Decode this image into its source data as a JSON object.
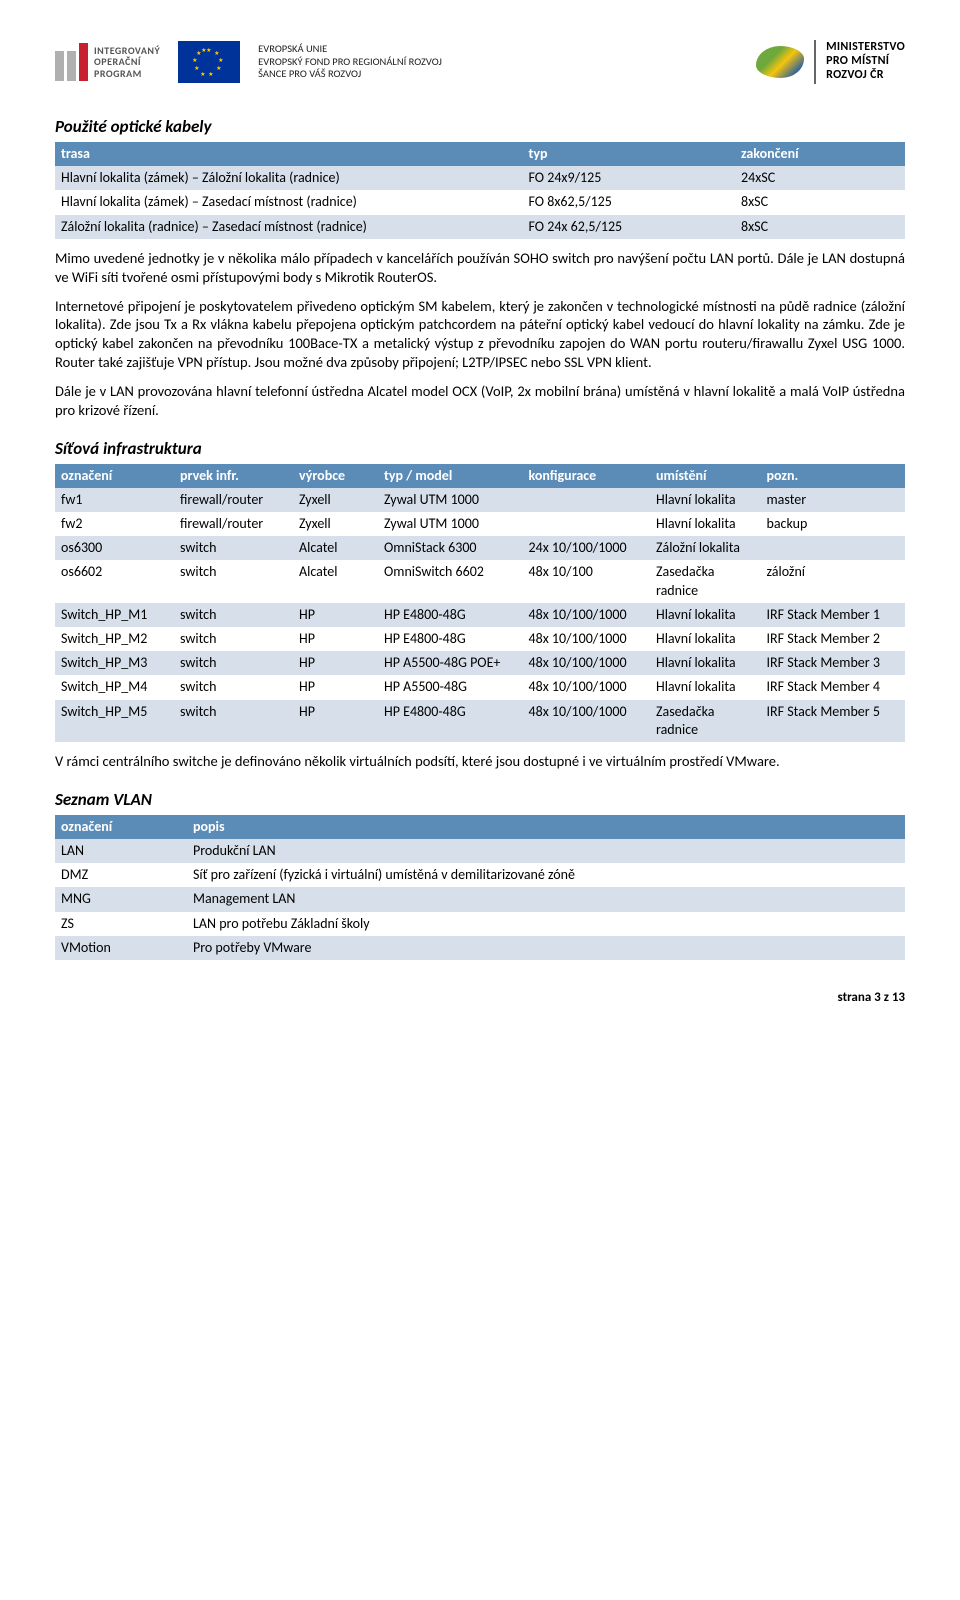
{
  "header": {
    "iop_text": "INTEGROVANÝ\nOPERAČNÍ\nPROGRAM",
    "eu_text": "EVROPSKÁ UNIE\nEVROPSKÝ FOND PRO REGIONÁLNÍ ROZVOJ\nŠANCE PRO VÁŠ ROZVOJ",
    "mmr_text": "MINISTERSTVO\nPRO MÍSTNÍ\nROZVOJ ČR"
  },
  "sec1_title": "Použité optické kabely",
  "table1": {
    "headers": [
      "trasa",
      "typ",
      "zakončení"
    ],
    "rows": [
      [
        "Hlavní lokalita (zámek) – Záložní lokalita (radnice)",
        "FO 24x9/125",
        "24xSC"
      ],
      [
        "Hlavní lokalita (zámek) – Zasedací místnost (radnice)",
        "FO 8x62,5/125",
        "8xSC"
      ],
      [
        "Záložní lokalita (radnice) – Zasedací místnost (radnice)",
        "FO 24x 62,5/125",
        "8xSC"
      ]
    ]
  },
  "para1": "Mimo uvedené jednotky je v několika málo případech v kancelářích používán SOHO switch pro navýšení počtu LAN portů. Dále je LAN dostupná ve WiFi síti tvořené osmi přístupovými body s Mikrotik RouterOS.",
  "para2": "Internetové připojení je poskytovatelem přivedeno optickým SM kabelem, který je zakončen v technologické místnosti na půdě radnice (záložní lokalita). Zde jsou Tx a Rx vlákna kabelu přepojena optickým patchcordem na páteřní optický kabel vedoucí do hlavní lokality na zámku. Zde je optický kabel zakončen na převodníku 100Bace-TX a metalický výstup z převodníku zapojen do WAN portu routeru/firawallu Zyxel USG 1000. Router také zajišťuje VPN přístup. Jsou možné dva způsoby připojení; L2TP/IPSEC nebo SSL VPN klient.",
  "para3": "Dále je v LAN provozována hlavní telefonní ústředna Alcatel model OCX (VoIP, 2x mobilní brána)  umístěná v hlavní lokalitě a malá VoIP ústředna pro krizové řízení.",
  "sec2_title": "Síťová infrastruktura",
  "table2": {
    "headers": [
      "označení",
      "prvek infr.",
      "výrobce",
      "typ / model",
      "konfigurace",
      "umístění",
      "pozn."
    ],
    "rows": [
      [
        "fw1",
        "firewall/router",
        "Zyxell",
        "Zywal UTM 1000",
        "",
        "Hlavní lokalita",
        "master"
      ],
      [
        "fw2",
        "firewall/router",
        "Zyxell",
        "Zywal UTM 1000",
        "",
        "Hlavní lokalita",
        "backup"
      ],
      [
        "os6300",
        "switch",
        "Alcatel",
        "OmniStack 6300",
        "24x 10/100/1000",
        "Záložní lokalita",
        ""
      ],
      [
        "os6602",
        "switch",
        "Alcatel",
        "OmniSwitch 6602",
        "48x 10/100",
        "Zasedačka radnice",
        "záložní"
      ],
      [
        "Switch_HP_M1",
        "switch",
        "HP",
        "HP E4800-48G",
        "48x 10/100/1000",
        "Hlavní lokalita",
        "IRF Stack Member 1"
      ],
      [
        "Switch_HP_M2",
        "switch",
        "HP",
        "HP E4800-48G",
        "48x 10/100/1000",
        "Hlavní lokalita",
        "IRF Stack Member 2"
      ],
      [
        "Switch_HP_M3",
        "switch",
        "HP",
        "HP A5500-48G POE+",
        "48x 10/100/1000",
        "Hlavní lokalita",
        "IRF Stack Member 3"
      ],
      [
        "Switch_HP_M4",
        "switch",
        "HP",
        "HP A5500-48G",
        "48x 10/100/1000",
        "Hlavní lokalita",
        "IRF Stack Member 4"
      ],
      [
        "Switch_HP_M5",
        "switch",
        "HP",
        "HP E4800-48G",
        "48x 10/100/1000",
        "Zasedačka radnice",
        "IRF Stack Member 5"
      ]
    ],
    "col_widths": [
      "14%",
      "14%",
      "10%",
      "17%",
      "15%",
      "13%",
      "17%"
    ]
  },
  "para4": "V rámci centrálního switche je definováno několik virtuálních podsítí, které jsou dostupné i ve virtuálním prostředí VMware.",
  "sec3_title": "Seznam VLAN",
  "table3": {
    "headers": [
      "označení",
      "popis"
    ],
    "rows": [
      [
        "LAN",
        "Produkční LAN"
      ],
      [
        "DMZ",
        "Síť pro zařízení (fyzická i virtuální) umístěná v demilitarizované zóně"
      ],
      [
        "MNG",
        "Management LAN"
      ],
      [
        "ZS",
        "LAN pro potřebu Základní školy"
      ],
      [
        "VMotion",
        "Pro potřeby VMware"
      ]
    ]
  },
  "footer": "strana 3 z 13"
}
